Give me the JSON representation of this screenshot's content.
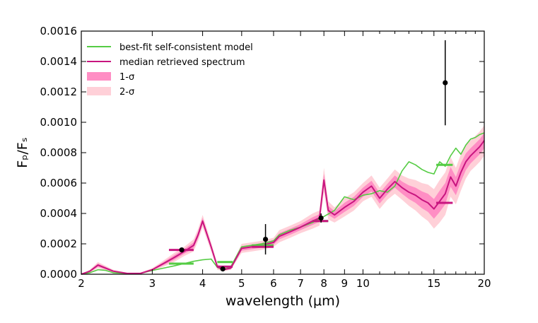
{
  "chart_data": {
    "type": "line",
    "xlabel": "wavelength (μm)",
    "ylabel": "Fₚ/Fₛ",
    "xscale": "log",
    "xlim": [
      2,
      20
    ],
    "ylim": [
      0.0,
      0.0016
    ],
    "x_ticks": [
      2,
      3,
      4,
      5,
      6,
      7,
      8,
      9,
      10,
      15,
      20
    ],
    "x_tick_labels": [
      "2",
      "3",
      "4",
      "5",
      "6",
      "7",
      "8",
      "9",
      "10",
      "15",
      "20"
    ],
    "y_ticks": [
      0.0,
      0.0002,
      0.0004,
      0.0006,
      0.0008,
      0.001,
      0.0012,
      0.0014,
      0.0016
    ],
    "y_tick_labels": [
      "0.0000",
      "0.0002",
      "0.0004",
      "0.0006",
      "0.0008",
      "0.0010",
      "0.0012",
      "0.0014",
      "0.0016"
    ],
    "legend_position": "top-left",
    "legend": [
      {
        "label": "best-fit self-consistent model",
        "kind": "line",
        "color": "#55cc44"
      },
      {
        "label": "median retrieved spectrum",
        "kind": "line",
        "color": "#c8157f"
      },
      {
        "label": "1-σ",
        "kind": "patch",
        "color": "#ff8ec4"
      },
      {
        "label": "2-σ",
        "kind": "patch",
        "color": "#ffd0d8"
      }
    ],
    "series": [
      {
        "name": "best-fit self-consistent model",
        "color": "#55cc44",
        "x": [
          2.0,
          2.1,
          2.2,
          2.3,
          2.4,
          2.6,
          2.8,
          3.0,
          3.2,
          3.4,
          3.6,
          3.8,
          4.0,
          4.2,
          4.35,
          4.5,
          4.7,
          5.0,
          5.3,
          5.6,
          6.0,
          6.2,
          6.6,
          7.0,
          7.5,
          8.0,
          8.5,
          9.0,
          9.5,
          10.0,
          10.5,
          11.0,
          11.5,
          12.0,
          12.5,
          13.0,
          13.5,
          14.0,
          14.5,
          15.0,
          15.5,
          16.0,
          16.5,
          17.0,
          17.5,
          18.0,
          18.5,
          19.0,
          19.5,
          20.0
        ],
        "y": [
          0.0,
          1e-05,
          3e-05,
          2.5e-05,
          1e-05,
          5e-06,
          5e-06,
          2.5e-05,
          4e-05,
          5.5e-05,
          7e-05,
          8.5e-05,
          9.5e-05,
          0.0001,
          4.5e-05,
          3e-05,
          5e-05,
          0.00018,
          0.00019,
          0.0002,
          0.00022,
          0.00026,
          0.00029,
          0.00031,
          0.00034,
          0.00038,
          0.00042,
          0.00051,
          0.00049,
          0.00052,
          0.00053,
          0.00055,
          0.00054,
          0.00058,
          0.00068,
          0.00074,
          0.00072,
          0.00069,
          0.00067,
          0.00066,
          0.00074,
          0.00071,
          0.00078,
          0.00083,
          0.00079,
          0.00085,
          0.00089,
          0.0009,
          0.00092,
          0.00093
        ]
      },
      {
        "name": "median retrieved spectrum",
        "color": "#c8157f",
        "x": [
          2.0,
          2.1,
          2.2,
          2.3,
          2.4,
          2.6,
          2.8,
          3.0,
          3.2,
          3.4,
          3.6,
          3.8,
          3.9,
          4.0,
          4.2,
          4.35,
          4.5,
          4.7,
          5.0,
          5.3,
          5.6,
          6.0,
          6.2,
          6.6,
          7.0,
          7.5,
          7.8,
          8.0,
          8.2,
          8.5,
          9.0,
          9.5,
          10.0,
          10.5,
          11.0,
          11.5,
          12.0,
          12.5,
          13.0,
          13.5,
          14.0,
          14.5,
          15.0,
          15.5,
          16.0,
          16.5,
          17.0,
          17.5,
          18.0,
          18.5,
          19.0,
          19.5,
          20.0
        ],
        "y": [
          0.0,
          2e-05,
          6e-05,
          4e-05,
          2e-05,
          5e-06,
          5e-06,
          3e-05,
          7e-05,
          0.00011,
          0.00015,
          0.00019,
          0.00026,
          0.00035,
          0.00018,
          5e-05,
          3e-05,
          4e-05,
          0.00017,
          0.00018,
          0.00019,
          0.00021,
          0.00025,
          0.00028,
          0.00031,
          0.00035,
          0.00037,
          0.00062,
          0.00042,
          0.00039,
          0.00044,
          0.00048,
          0.00054,
          0.00058,
          0.0005,
          0.00056,
          0.00061,
          0.00057,
          0.00054,
          0.00052,
          0.00049,
          0.00047,
          0.00043,
          0.00048,
          0.00053,
          0.00064,
          0.00058,
          0.00067,
          0.00074,
          0.00078,
          0.00081,
          0.00084,
          0.00088
        ]
      }
    ],
    "bands": [
      {
        "name": "2-σ",
        "color": "#ffd0d8",
        "half_width": [
          0.0,
          1e-05,
          2e-05,
          1.5e-05,
          1e-05,
          5e-06,
          5e-06,
          1e-05,
          2e-05,
          3e-05,
          3e-05,
          4e-05,
          4e-05,
          4e-05,
          3e-05,
          2e-05,
          1e-05,
          1e-05,
          3e-05,
          3e-05,
          3e-05,
          3e-05,
          4e-05,
          4e-05,
          4e-05,
          5e-05,
          5e-05,
          8e-05,
          6e-05,
          5e-05,
          6e-05,
          6e-05,
          6e-05,
          7e-05,
          7e-05,
          7e-05,
          8e-05,
          8e-05,
          9e-05,
          0.0001,
          0.00011,
          0.00012,
          0.00013,
          0.00014,
          0.00014,
          0.00013,
          0.00012,
          0.00012,
          0.00011,
          0.0001,
          0.0001,
          0.0001,
          0.0001
        ]
      },
      {
        "name": "1-σ",
        "color": "#ff8ec4",
        "half_width": [
          0.0,
          5e-06,
          1e-05,
          8e-06,
          5e-06,
          3e-06,
          3e-06,
          5e-06,
          1e-05,
          1.5e-05,
          1.5e-05,
          2e-05,
          2e-05,
          2e-05,
          1.5e-05,
          1e-05,
          5e-06,
          5e-06,
          1.5e-05,
          1.5e-05,
          1.5e-05,
          1.5e-05,
          2e-05,
          2e-05,
          2e-05,
          2.5e-05,
          2.5e-05,
          4e-05,
          3e-05,
          2.5e-05,
          3e-05,
          3e-05,
          3e-05,
          3.5e-05,
          3.5e-05,
          3.5e-05,
          4e-05,
          4e-05,
          4.5e-05,
          5e-05,
          5.5e-05,
          6e-05,
          6.5e-05,
          7e-05,
          7e-05,
          6.5e-05,
          6e-05,
          6e-05,
          5.5e-05,
          5e-05,
          5e-05,
          5e-05,
          5e-05
        ]
      }
    ],
    "data_points": [
      {
        "x": 3.55,
        "y": 0.00016,
        "yerr": 1.5e-05
      },
      {
        "x": 4.49,
        "y": 3.5e-05,
        "yerr": 1.2e-05
      },
      {
        "x": 5.73,
        "y": 0.00023,
        "yerr": 0.0001
      },
      {
        "x": 7.87,
        "y": 0.00037,
        "yerr": 3e-05
      },
      {
        "x": 16.0,
        "y": 0.00126,
        "yerr": 0.00028
      }
    ],
    "model_binned": [
      {
        "x": 3.55,
        "y": 7e-05,
        "x0": 3.3,
        "x1": 3.8
      },
      {
        "x": 4.49,
        "y": 8e-05,
        "x0": 4.35,
        "x1": 4.75
      },
      {
        "x": 5.73,
        "y": 0.00019,
        "x0": 5.3,
        "x1": 6.0
      },
      {
        "x": 7.87,
        "y": 0.00035,
        "x0": 7.5,
        "x1": 8.2
      },
      {
        "x": 16.0,
        "y": 0.00072,
        "x0": 15.2,
        "x1": 16.7
      }
    ],
    "retrieved_binned": [
      {
        "x": 3.55,
        "y": 0.00016,
        "x0": 3.3,
        "x1": 3.8
      },
      {
        "x": 4.49,
        "y": 5e-05,
        "x0": 4.35,
        "x1": 4.75
      },
      {
        "x": 5.73,
        "y": 0.00018,
        "x0": 5.3,
        "x1": 6.0
      },
      {
        "x": 7.87,
        "y": 0.00035,
        "x0": 7.5,
        "x1": 8.2
      },
      {
        "x": 16.0,
        "y": 0.00047,
        "x0": 15.2,
        "x1": 16.7
      }
    ]
  }
}
